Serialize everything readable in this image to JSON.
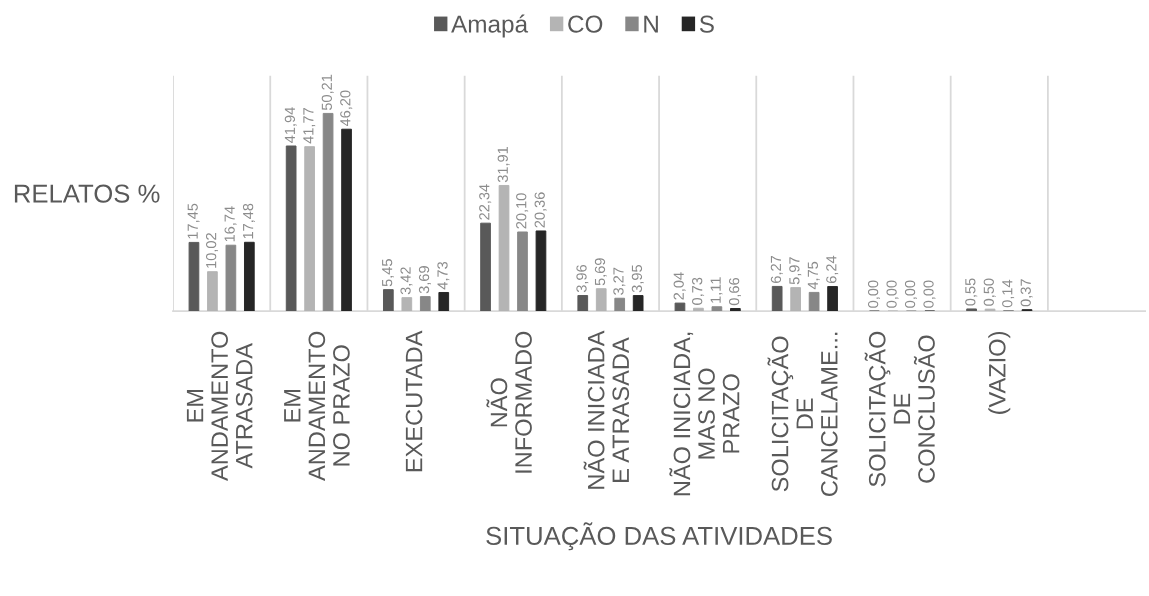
{
  "chart_data": {
    "type": "bar",
    "xlabel": "SITUAÇÃO DAS ATIVIDADES",
    "ylabel": "RELATOS %",
    "categories": [
      "EM\nANDAMENTO\nATRASADA",
      "EM\nANDAMENTO\nNO PRAZO",
      "EXECUTADA",
      "NÃO\nINFORMADO",
      "NÃO INICIADA\nE ATRASADA",
      "NÃO INICIADA,\nMAS NO\nPRAZO",
      "SOLICITAÇÃO\nDE\nCANCELAME...",
      "SOLICITAÇÃO\nDE\nCONCLUSÃO",
      "(VAZIO)",
      null
    ],
    "series": [
      {
        "name": "Amapá",
        "color": "#595959",
        "values": [
          17.45,
          41.94,
          5.45,
          22.34,
          3.96,
          2.04,
          6.27,
          0.0,
          0.55,
          null
        ],
        "value_labels": [
          "17,45",
          "41,94",
          "5,45",
          "22,34",
          "3,96",
          "2,04",
          "6,27",
          "0,00",
          "0,55",
          null
        ]
      },
      {
        "name": "CO",
        "color": "#b4b4b4",
        "values": [
          10.02,
          41.77,
          3.42,
          31.91,
          5.69,
          0.73,
          5.97,
          0.0,
          0.5,
          null
        ],
        "value_labels": [
          "10,02",
          "41,77",
          "3,42",
          "31,91",
          "5,69",
          "0,73",
          "5,97",
          "0,00",
          "0,50",
          null
        ]
      },
      {
        "name": "N",
        "color": "#878787",
        "values": [
          16.74,
          50.21,
          3.69,
          20.1,
          3.27,
          1.11,
          4.75,
          0.0,
          0.14,
          null
        ],
        "value_labels": [
          "16,74",
          "50,21",
          "3,69",
          "20,10",
          "3,27",
          "1,11",
          "4,75",
          "0,00",
          "0,14",
          null
        ]
      },
      {
        "name": "S",
        "color": "#262626",
        "values": [
          17.48,
          46.2,
          4.73,
          20.36,
          3.95,
          0.66,
          6.24,
          0.0,
          0.37,
          null
        ],
        "value_labels": [
          "17,48",
          "46,20",
          "4,73",
          "20,36",
          "3,95",
          "0,66",
          "6,24",
          "0,00",
          "0,37",
          null
        ]
      }
    ],
    "grid": "x",
    "legend": "top",
    "tick_labels": "x"
  }
}
